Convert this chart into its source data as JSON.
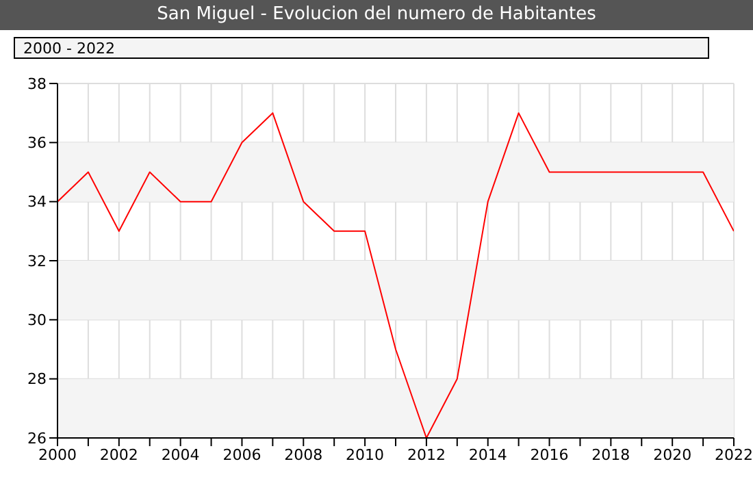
{
  "chart_data": {
    "type": "line",
    "title": "San Miguel - Evolucion del numero de Habitantes",
    "annotations": [
      "2000 - 2022"
    ],
    "x": [
      2000,
      2001,
      2002,
      2003,
      2004,
      2005,
      2006,
      2007,
      2008,
      2009,
      2010,
      2011,
      2012,
      2013,
      2014,
      2015,
      2016,
      2017,
      2018,
      2019,
      2020,
      2021,
      2022
    ],
    "series": [
      {
        "color": "#ff0000",
        "values": [
          34,
          35,
          33,
          35,
          34,
          34,
          36,
          37,
          34,
          33,
          33,
          29,
          26,
          28,
          34,
          37,
          35,
          35,
          35,
          35,
          35,
          35,
          33
        ]
      }
    ],
    "xlim": [
      2000,
      2022
    ],
    "xticks": [
      2000,
      {
        "value": 2001,
        "label": null
      },
      2002,
      {
        "value": 2003,
        "label": null
      },
      2004,
      {
        "value": 2005,
        "label": null
      },
      2006,
      {
        "value": 2007,
        "label": null
      },
      2008,
      {
        "value": 2009,
        "label": null
      },
      2010,
      {
        "value": 2011,
        "label": null
      },
      2012,
      {
        "value": 2013,
        "label": null
      },
      2014,
      {
        "value": 2015,
        "label": null
      },
      2016,
      {
        "value": 2017,
        "label": null
      },
      2018,
      {
        "value": 2019,
        "label": null
      },
      2020,
      {
        "value": 2021,
        "label": null
      },
      2022
    ],
    "ylim": [
      26,
      38
    ],
    "yticks": [
      26,
      28,
      30,
      32,
      34,
      36,
      38
    ],
    "grid": true,
    "marker": "none",
    "line_style": "solid"
  }
}
